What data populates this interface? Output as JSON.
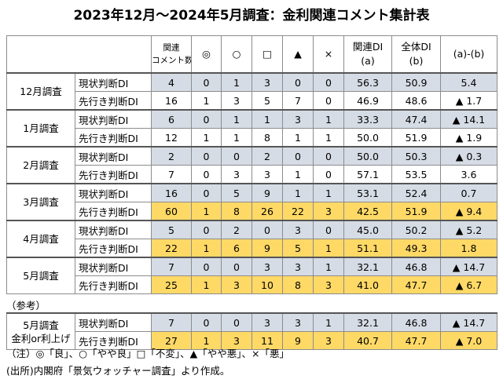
{
  "title": "2023年12月～2024年5月調査：金利関連コメント集計表",
  "table": {
    "header": [
      [
        "関連",
        "コメント数"
      ],
      [
        "◎"
      ],
      [
        "○"
      ],
      [
        "□"
      ],
      [
        "▲"
      ],
      [
        "×"
      ],
      [
        "関連DI",
        "(a)"
      ],
      [
        "全体DI",
        "(b)"
      ],
      [
        "(a)-(b)"
      ]
    ],
    "groups": [
      {
        "label": [
          "12月調査"
        ],
        "rows": [
          {
            "label": "現状判断DI",
            "cells": [
              "4",
              "0",
              "1",
              "3",
              "0",
              "0",
              "56.3",
              "50.9",
              "5.4"
            ]
          },
          {
            "label": "先行き判断DI",
            "cells": [
              "16",
              "1",
              "3",
              "5",
              "7",
              "0",
              "46.9",
              "48.6",
              "▲ 1.7"
            ]
          }
        ]
      },
      {
        "label": [
          "1月調査"
        ],
        "rows": [
          {
            "label": "現状判断DI",
            "cells": [
              "6",
              "0",
              "1",
              "1",
              "3",
              "1",
              "33.3",
              "47.4",
              "▲ 14.1"
            ]
          },
          {
            "label": "先行き判断DI",
            "cells": [
              "12",
              "1",
              "1",
              "8",
              "1",
              "1",
              "50.0",
              "51.9",
              "▲ 1.9"
            ]
          }
        ]
      },
      {
        "label": [
          "2月調査"
        ],
        "rows": [
          {
            "label": "現状判断DI",
            "cells": [
              "2",
              "0",
              "0",
              "2",
              "0",
              "0",
              "50.0",
              "50.3",
              "▲ 0.3"
            ]
          },
          {
            "label": "先行き判断DI",
            "cells": [
              "7",
              "0",
              "3",
              "3",
              "1",
              "0",
              "57.1",
              "53.5",
              "3.6"
            ]
          }
        ]
      },
      {
        "label": [
          "3月調査"
        ],
        "rows": [
          {
            "label": "現状判断DI",
            "cells": [
              "16",
              "0",
              "5",
              "9",
              "1",
              "1",
              "53.1",
              "52.4",
              "0.7"
            ]
          },
          {
            "label": "先行き判断DI",
            "cells": [
              "60",
              "1",
              "8",
              "26",
              "22",
              "3",
              "42.5",
              "51.9",
              "▲ 9.4"
            ]
          }
        ]
      },
      {
        "label": [
          "4月調査"
        ],
        "rows": [
          {
            "label": "現状判断DI",
            "cells": [
              "5",
              "0",
              "2",
              "0",
              "3",
              "0",
              "45.0",
              "50.2",
              "▲ 5.2"
            ]
          },
          {
            "label": "先行き判断DI",
            "cells": [
              "22",
              "1",
              "6",
              "9",
              "5",
              "1",
              "51.1",
              "49.3",
              "1.8"
            ]
          }
        ]
      },
      {
        "label": [
          "5月調査"
        ],
        "rows": [
          {
            "label": "現状判断DI",
            "cells": [
              "7",
              "0",
              "0",
              "3",
              "3",
              "1",
              "32.1",
              "46.8",
              "▲ 14.7"
            ]
          },
          {
            "label": "先行き判断DI",
            "cells": [
              "25",
              "1",
              "3",
              "10",
              "8",
              "3",
              "41.0",
              "47.7",
              "▲ 6.7"
            ]
          }
        ]
      }
    ],
    "reference_label": "（参考）",
    "reference": {
      "label": [
        "5月調査",
        "金利or利上げ"
      ],
      "rows": [
        {
          "label": "現状判断DI",
          "cells": [
            "7",
            "0",
            "0",
            "3",
            "3",
            "1",
            "32.1",
            "46.8",
            "▲ 14.7"
          ]
        },
        {
          "label": "先行き判断DI",
          "cells": [
            "27",
            "1",
            "3",
            "11",
            "9",
            "3",
            "40.7",
            "47.7",
            "▲ 7.0"
          ]
        }
      ]
    }
  },
  "notes": [
    "（注）◎「良」、○「やや良」□「不変」、▲「やや悪」、×「悪」",
    "(出所)内閣府「景気ウォッチャー調査」より作成。"
  ]
}
